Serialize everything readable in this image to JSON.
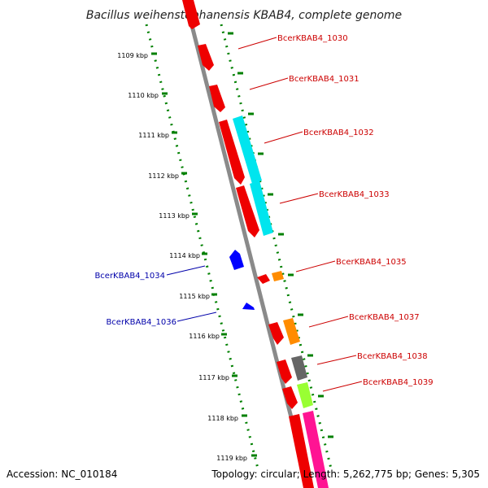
{
  "map": {
    "title": "Bacillus weihenstephanensis KBAB4, complete genome",
    "accession_text": "Accession: NC_010184",
    "summary_text": "Topology: circular; Length: 5,262,775 bp; Genes: 5,305"
  },
  "scale_labels": [
    "1109 kbp",
    "1110 kbp",
    "1111 kbp",
    "1112 kbp",
    "1113 kbp",
    "1114 kbp",
    "1115 kbp",
    "1116 kbp",
    "1117 kbp",
    "1118 kbp",
    "1119 kbp"
  ],
  "genes_forward": [
    {
      "label": "BcerKBAB4_1030",
      "color": "#cc0000"
    },
    {
      "label": "BcerKBAB4_1031",
      "color": "#cc0000"
    },
    {
      "label": "BcerKBAB4_1032",
      "color": "#cc0000"
    },
    {
      "label": "BcerKBAB4_1033",
      "color": "#cc0000"
    },
    {
      "label": "BcerKBAB4_1035",
      "color": "#cc0000"
    },
    {
      "label": "BcerKBAB4_1037",
      "color": "#cc0000"
    },
    {
      "label": "BcerKBAB4_1038",
      "color": "#cc0000"
    },
    {
      "label": "BcerKBAB4_1039",
      "color": "#cc0000"
    }
  ],
  "genes_reverse": [
    {
      "label": "BcerKBAB4_1034",
      "color": "#0000aa"
    },
    {
      "label": "BcerKBAB4_1036",
      "color": "#0000aa"
    }
  ],
  "colors": {
    "cds_red": "#ff0000",
    "cyan": "#00e5ee",
    "orange": "#ff8c00",
    "gray": "#666666",
    "yellowgreen": "#99ff33",
    "pink": "#ff1493",
    "blue": "#0000ff",
    "backbone": "#808080",
    "tick_green": "#008000"
  }
}
